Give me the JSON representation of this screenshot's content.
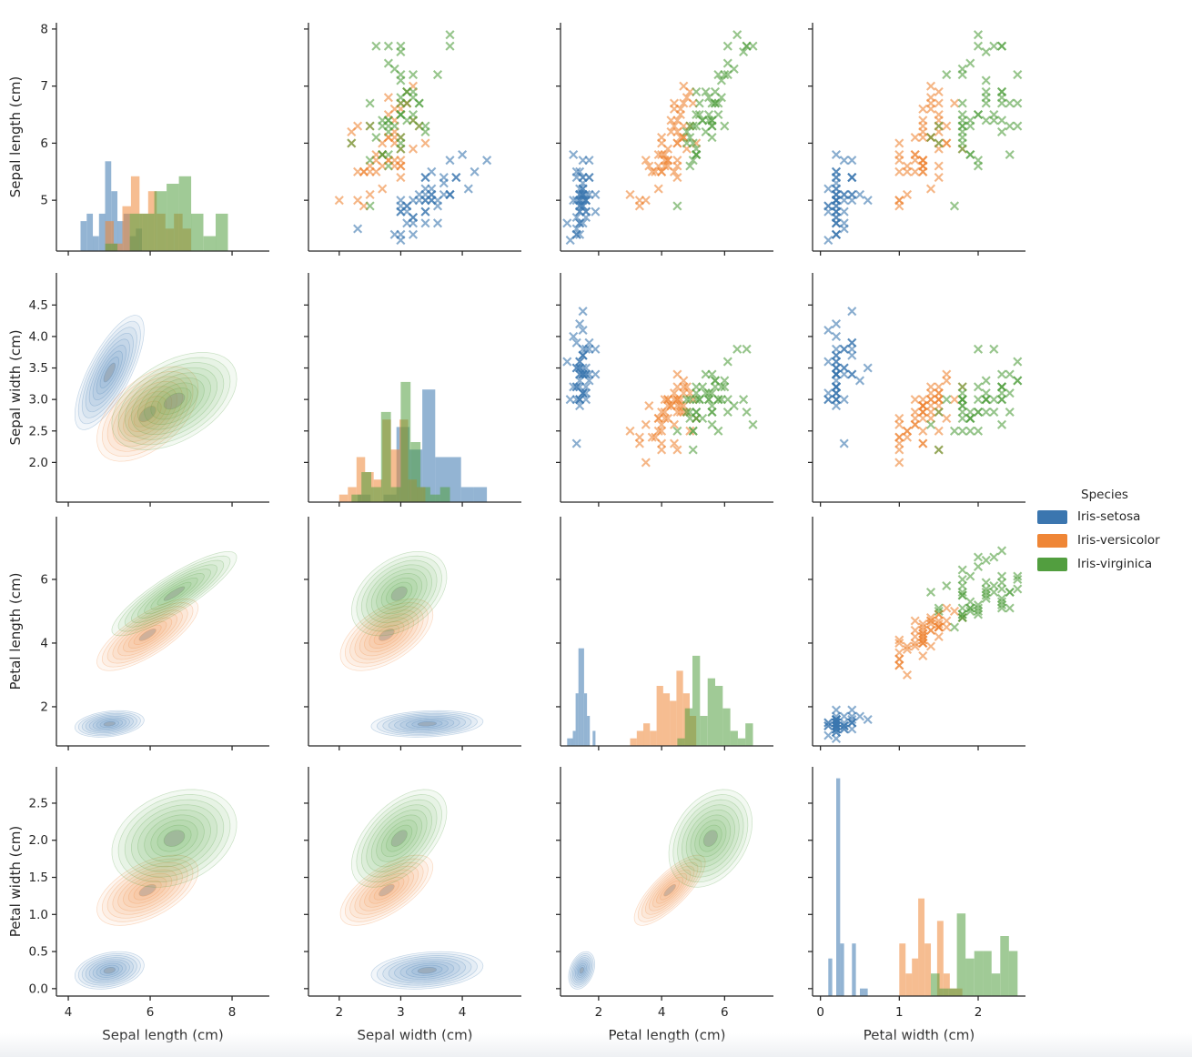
{
  "chart_data": {
    "type": "scatter",
    "subtype": "pairplot-matrix",
    "title": "",
    "grid": {
      "rows": 4,
      "cols": 4,
      "diagonal": "histogram (10 bins per species, shared count scale)",
      "upper_triangle": "scatter with x markers",
      "lower_triangle": "filled kde density contours with gray innermost level"
    },
    "legend": {
      "title": "Species",
      "position": "right-middle"
    },
    "variables": [
      {
        "key": "sepal_length",
        "label": "Sepal length (cm)",
        "xlim": [
          3.71,
          8.91
        ],
        "ylim": [
          4.11,
          8.11
        ],
        "xticks": [
          4,
          6,
          8
        ],
        "xtick_labels": [
          "4",
          "6",
          "8"
        ],
        "yticks": [
          5,
          6,
          7,
          8
        ],
        "ytick_labels": [
          "5",
          "6",
          "7",
          "8"
        ]
      },
      {
        "key": "sepal_width",
        "label": "Sepal width (cm)",
        "xlim": [
          1.5,
          4.96
        ],
        "ylim": [
          1.37,
          5.01
        ],
        "xticks": [
          2,
          3,
          4
        ],
        "xtick_labels": [
          "2",
          "3",
          "4"
        ],
        "yticks": [
          2,
          2.5,
          3,
          3.5,
          4,
          4.5
        ],
        "ytick_labels": [
          "2.0",
          "2.5",
          "3.0",
          "3.5",
          "4.0",
          "4.5"
        ]
      },
      {
        "key": "petal_length",
        "label": "Petal length (cm)",
        "xlim": [
          0.79,
          7.55
        ],
        "ylim": [
          0.77,
          7.97
        ],
        "xticks": [
          2,
          4,
          6
        ],
        "xtick_labels": [
          "2",
          "4",
          "6"
        ],
        "yticks": [
          2,
          4,
          6
        ],
        "ytick_labels": [
          "2",
          "4",
          "6"
        ]
      },
      {
        "key": "petal_width",
        "label": "Petal width (cm)",
        "xlim": [
          -0.1,
          2.6
        ],
        "ylim": [
          -0.1,
          2.99
        ],
        "xticks": [
          0,
          1,
          2
        ],
        "xtick_labels": [
          "0",
          "1",
          "2"
        ],
        "yticks": [
          0,
          0.5,
          1,
          1.5,
          2,
          2.5
        ],
        "ytick_labels": [
          "0.0",
          "0.5",
          "1.0",
          "1.5",
          "2.0",
          "2.5"
        ]
      }
    ],
    "series": [
      {
        "name": "Iris-setosa",
        "color": "#3B76AF",
        "points": [
          [
            5.1,
            3.5,
            1.4,
            0.2
          ],
          [
            4.9,
            3.0,
            1.4,
            0.2
          ],
          [
            4.7,
            3.2,
            1.3,
            0.2
          ],
          [
            4.6,
            3.1,
            1.5,
            0.2
          ],
          [
            5.0,
            3.6,
            1.4,
            0.2
          ],
          [
            5.4,
            3.9,
            1.7,
            0.4
          ],
          [
            4.6,
            3.4,
            1.4,
            0.3
          ],
          [
            5.0,
            3.4,
            1.5,
            0.2
          ],
          [
            4.4,
            2.9,
            1.4,
            0.2
          ],
          [
            4.9,
            3.1,
            1.5,
            0.1
          ],
          [
            5.4,
            3.7,
            1.5,
            0.2
          ],
          [
            4.8,
            3.4,
            1.6,
            0.2
          ],
          [
            4.8,
            3.0,
            1.4,
            0.1
          ],
          [
            4.3,
            3.0,
            1.1,
            0.1
          ],
          [
            5.8,
            4.0,
            1.2,
            0.2
          ],
          [
            5.7,
            4.4,
            1.5,
            0.4
          ],
          [
            5.4,
            3.9,
            1.3,
            0.4
          ],
          [
            5.1,
            3.5,
            1.4,
            0.3
          ],
          [
            5.7,
            3.8,
            1.7,
            0.3
          ],
          [
            5.1,
            3.8,
            1.5,
            0.3
          ],
          [
            5.4,
            3.4,
            1.7,
            0.2
          ],
          [
            5.1,
            3.7,
            1.5,
            0.4
          ],
          [
            4.6,
            3.6,
            1.0,
            0.2
          ],
          [
            5.1,
            3.3,
            1.7,
            0.5
          ],
          [
            4.8,
            3.4,
            1.9,
            0.2
          ],
          [
            5.0,
            3.0,
            1.6,
            0.2
          ],
          [
            5.0,
            3.4,
            1.6,
            0.4
          ],
          [
            5.2,
            3.5,
            1.5,
            0.2
          ],
          [
            5.2,
            3.4,
            1.4,
            0.2
          ],
          [
            4.7,
            3.2,
            1.6,
            0.2
          ],
          [
            4.8,
            3.1,
            1.6,
            0.2
          ],
          [
            5.4,
            3.4,
            1.5,
            0.4
          ],
          [
            5.2,
            4.1,
            1.5,
            0.1
          ],
          [
            5.5,
            4.2,
            1.4,
            0.2
          ],
          [
            4.9,
            3.1,
            1.5,
            0.2
          ],
          [
            5.0,
            3.2,
            1.2,
            0.2
          ],
          [
            5.5,
            3.5,
            1.3,
            0.2
          ],
          [
            4.9,
            3.6,
            1.4,
            0.1
          ],
          [
            4.4,
            3.0,
            1.3,
            0.2
          ],
          [
            5.1,
            3.4,
            1.5,
            0.2
          ],
          [
            5.0,
            3.5,
            1.3,
            0.3
          ],
          [
            4.5,
            2.3,
            1.3,
            0.3
          ],
          [
            4.4,
            3.2,
            1.3,
            0.2
          ],
          [
            5.0,
            3.5,
            1.6,
            0.6
          ],
          [
            5.1,
            3.8,
            1.9,
            0.4
          ],
          [
            4.8,
            3.0,
            1.4,
            0.3
          ],
          [
            5.1,
            3.8,
            1.6,
            0.2
          ],
          [
            4.6,
            3.2,
            1.4,
            0.2
          ],
          [
            5.3,
            3.7,
            1.5,
            0.2
          ],
          [
            5.0,
            3.3,
            1.4,
            0.2
          ]
        ]
      },
      {
        "name": "Iris-versicolor",
        "color": "#EF8636",
        "points": [
          [
            7.0,
            3.2,
            4.7,
            1.4
          ],
          [
            6.4,
            3.2,
            4.5,
            1.5
          ],
          [
            6.9,
            3.1,
            4.9,
            1.5
          ],
          [
            5.5,
            2.3,
            4.0,
            1.3
          ],
          [
            6.5,
            2.8,
            4.6,
            1.5
          ],
          [
            5.7,
            2.8,
            4.5,
            1.3
          ],
          [
            6.3,
            3.3,
            4.7,
            1.6
          ],
          [
            4.9,
            2.4,
            3.3,
            1.0
          ],
          [
            6.6,
            2.9,
            4.6,
            1.3
          ],
          [
            5.2,
            2.7,
            3.9,
            1.4
          ],
          [
            5.0,
            2.0,
            3.5,
            1.0
          ],
          [
            5.9,
            3.0,
            4.2,
            1.5
          ],
          [
            6.0,
            2.2,
            4.0,
            1.0
          ],
          [
            6.1,
            2.9,
            4.7,
            1.4
          ],
          [
            5.6,
            2.9,
            3.6,
            1.3
          ],
          [
            6.7,
            3.1,
            4.4,
            1.4
          ],
          [
            5.6,
            3.0,
            4.5,
            1.5
          ],
          [
            5.8,
            2.7,
            4.1,
            1.0
          ],
          [
            6.2,
            2.2,
            4.5,
            1.5
          ],
          [
            5.6,
            2.5,
            3.9,
            1.1
          ],
          [
            5.9,
            3.2,
            4.8,
            1.8
          ],
          [
            6.1,
            2.8,
            4.0,
            1.3
          ],
          [
            6.3,
            2.5,
            4.9,
            1.5
          ],
          [
            6.1,
            2.8,
            4.7,
            1.2
          ],
          [
            6.4,
            2.9,
            4.3,
            1.3
          ],
          [
            6.6,
            3.0,
            4.4,
            1.4
          ],
          [
            6.8,
            2.8,
            4.8,
            1.4
          ],
          [
            6.7,
            3.0,
            5.0,
            1.7
          ],
          [
            6.0,
            2.9,
            4.5,
            1.5
          ],
          [
            5.7,
            2.6,
            3.5,
            1.0
          ],
          [
            5.5,
            2.4,
            3.8,
            1.1
          ],
          [
            5.5,
            2.4,
            3.7,
            1.0
          ],
          [
            5.8,
            2.7,
            3.9,
            1.2
          ],
          [
            6.0,
            2.7,
            5.1,
            1.6
          ],
          [
            5.4,
            3.0,
            4.5,
            1.5
          ],
          [
            6.0,
            3.4,
            4.5,
            1.6
          ],
          [
            6.7,
            3.1,
            4.7,
            1.5
          ],
          [
            6.3,
            2.3,
            4.4,
            1.3
          ],
          [
            5.6,
            3.0,
            4.1,
            1.3
          ],
          [
            5.5,
            2.5,
            4.0,
            1.3
          ],
          [
            5.5,
            2.6,
            4.4,
            1.2
          ],
          [
            6.1,
            3.0,
            4.6,
            1.4
          ],
          [
            5.8,
            2.6,
            4.0,
            1.2
          ],
          [
            5.0,
            2.3,
            3.3,
            1.0
          ],
          [
            5.6,
            2.7,
            4.2,
            1.3
          ],
          [
            5.7,
            3.0,
            4.2,
            1.2
          ],
          [
            5.7,
            2.9,
            4.2,
            1.3
          ],
          [
            6.2,
            2.9,
            4.3,
            1.3
          ],
          [
            5.1,
            2.5,
            3.0,
            1.1
          ],
          [
            5.7,
            2.8,
            4.1,
            1.3
          ]
        ]
      },
      {
        "name": "Iris-virginica",
        "color": "#529E3F",
        "points": [
          [
            6.3,
            3.3,
            6.0,
            2.5
          ],
          [
            5.8,
            2.7,
            5.1,
            1.9
          ],
          [
            7.1,
            3.0,
            5.9,
            2.1
          ],
          [
            6.3,
            2.9,
            5.6,
            1.8
          ],
          [
            6.5,
            3.0,
            5.8,
            2.2
          ],
          [
            7.6,
            3.0,
            6.6,
            2.1
          ],
          [
            4.9,
            2.5,
            4.5,
            1.7
          ],
          [
            7.3,
            2.9,
            6.3,
            1.8
          ],
          [
            6.7,
            2.5,
            5.8,
            1.8
          ],
          [
            7.2,
            3.6,
            6.1,
            2.5
          ],
          [
            6.5,
            3.2,
            5.1,
            2.0
          ],
          [
            6.4,
            2.7,
            5.3,
            1.9
          ],
          [
            6.8,
            3.0,
            5.5,
            2.1
          ],
          [
            5.7,
            2.5,
            5.0,
            2.0
          ],
          [
            5.8,
            2.8,
            5.1,
            2.4
          ],
          [
            6.4,
            3.2,
            5.3,
            2.3
          ],
          [
            6.5,
            3.0,
            5.5,
            1.8
          ],
          [
            7.7,
            3.8,
            6.7,
            2.2
          ],
          [
            7.7,
            2.6,
            6.9,
            2.3
          ],
          [
            6.0,
            2.2,
            5.0,
            1.5
          ],
          [
            6.9,
            3.2,
            5.7,
            2.3
          ],
          [
            5.6,
            2.8,
            4.9,
            2.0
          ],
          [
            7.7,
            2.8,
            6.7,
            2.0
          ],
          [
            6.3,
            2.7,
            4.9,
            1.8
          ],
          [
            6.7,
            3.3,
            5.7,
            2.1
          ],
          [
            7.2,
            3.2,
            6.0,
            1.8
          ],
          [
            6.2,
            2.8,
            4.8,
            1.8
          ],
          [
            6.1,
            3.0,
            4.9,
            1.8
          ],
          [
            6.4,
            2.8,
            5.6,
            2.1
          ],
          [
            7.2,
            3.0,
            5.8,
            1.6
          ],
          [
            7.4,
            2.8,
            6.1,
            1.9
          ],
          [
            7.9,
            3.8,
            6.4,
            2.0
          ],
          [
            6.4,
            2.8,
            5.6,
            2.2
          ],
          [
            6.3,
            2.8,
            5.1,
            1.5
          ],
          [
            6.1,
            2.6,
            5.6,
            1.4
          ],
          [
            7.7,
            3.0,
            6.1,
            2.3
          ],
          [
            6.3,
            3.4,
            5.6,
            2.4
          ],
          [
            6.4,
            3.1,
            5.5,
            1.8
          ],
          [
            6.0,
            3.0,
            4.8,
            1.8
          ],
          [
            6.9,
            3.1,
            5.4,
            2.1
          ],
          [
            6.7,
            3.1,
            5.6,
            2.4
          ],
          [
            6.9,
            3.1,
            5.1,
            2.3
          ],
          [
            5.8,
            2.7,
            5.1,
            1.9
          ],
          [
            6.8,
            3.2,
            5.9,
            2.3
          ],
          [
            6.7,
            3.3,
            5.7,
            2.5
          ],
          [
            6.7,
            3.0,
            5.2,
            2.3
          ],
          [
            6.3,
            2.5,
            5.0,
            1.9
          ],
          [
            6.5,
            3.0,
            5.2,
            2.0
          ],
          [
            6.2,
            3.4,
            5.4,
            2.3
          ],
          [
            5.9,
            3.0,
            5.1,
            1.8
          ]
        ]
      }
    ],
    "style": {
      "axis_color": "#262626",
      "text_color": "#262626",
      "hist_opacity": 0.55,
      "marker": "x",
      "marker_opacity": 0.6,
      "kde_inner_color": "#7f7f7f",
      "background": "#ffffff"
    }
  }
}
